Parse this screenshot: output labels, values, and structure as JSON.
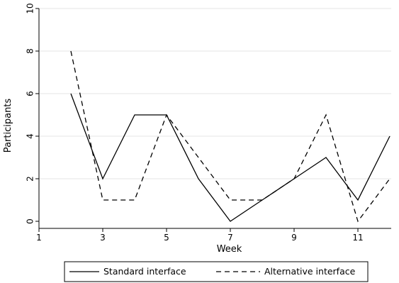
{
  "chart_data": {
    "type": "line",
    "title": "",
    "xlabel": "Week",
    "ylabel": "Participants",
    "xlim": [
      1,
      12
    ],
    "ylim": [
      0,
      10
    ],
    "x_ticks": [
      1,
      3,
      5,
      7,
      9,
      11
    ],
    "y_ticks": [
      0,
      2,
      4,
      6,
      8,
      10
    ],
    "grid": true,
    "legend_position": "bottom",
    "x": [
      2,
      3,
      4,
      5,
      6,
      7,
      8,
      9,
      10,
      11,
      12
    ],
    "series": [
      {
        "name": "Standard interface",
        "style": "solid",
        "color": "#000000",
        "values": [
          6,
          2,
          5,
          5,
          2,
          0,
          1,
          2,
          3,
          1,
          4
        ]
      },
      {
        "name": "Alternative interface",
        "style": "dashed",
        "color": "#000000",
        "values": [
          8,
          1,
          1,
          5,
          3,
          1,
          1,
          2,
          5,
          0,
          2
        ]
      }
    ]
  }
}
